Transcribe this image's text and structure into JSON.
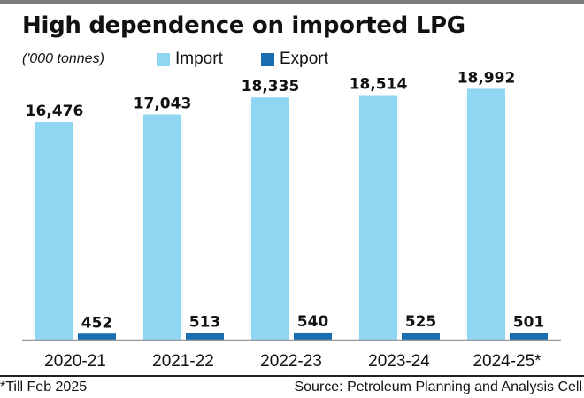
{
  "title": "High dependence on imported LPG",
  "unit_label": "('000 tonnes)",
  "footnote": "*Till Feb 2025",
  "source": "Source: Petroleum Planning and Analysis Cell",
  "colors": {
    "import": "#8fd6f2",
    "export": "#1a6eb0",
    "axis": "#999999"
  },
  "chart_data": {
    "type": "bar",
    "categories": [
      "2020-21",
      "2021-22",
      "2022-23",
      "2023-24",
      "2024-25*"
    ],
    "series": [
      {
        "name": "Import",
        "values": [
          16476,
          17043,
          18335,
          18514,
          18992
        ],
        "labels": [
          "16,476",
          "17,043",
          "18,335",
          "18,514",
          "18,992"
        ]
      },
      {
        "name": "Export",
        "values": [
          452,
          513,
          540,
          525,
          501
        ],
        "labels": [
          "452",
          "513",
          "540",
          "525",
          "501"
        ]
      }
    ],
    "ylim": [
      0,
      19000
    ],
    "legend": "top",
    "grid": false
  }
}
